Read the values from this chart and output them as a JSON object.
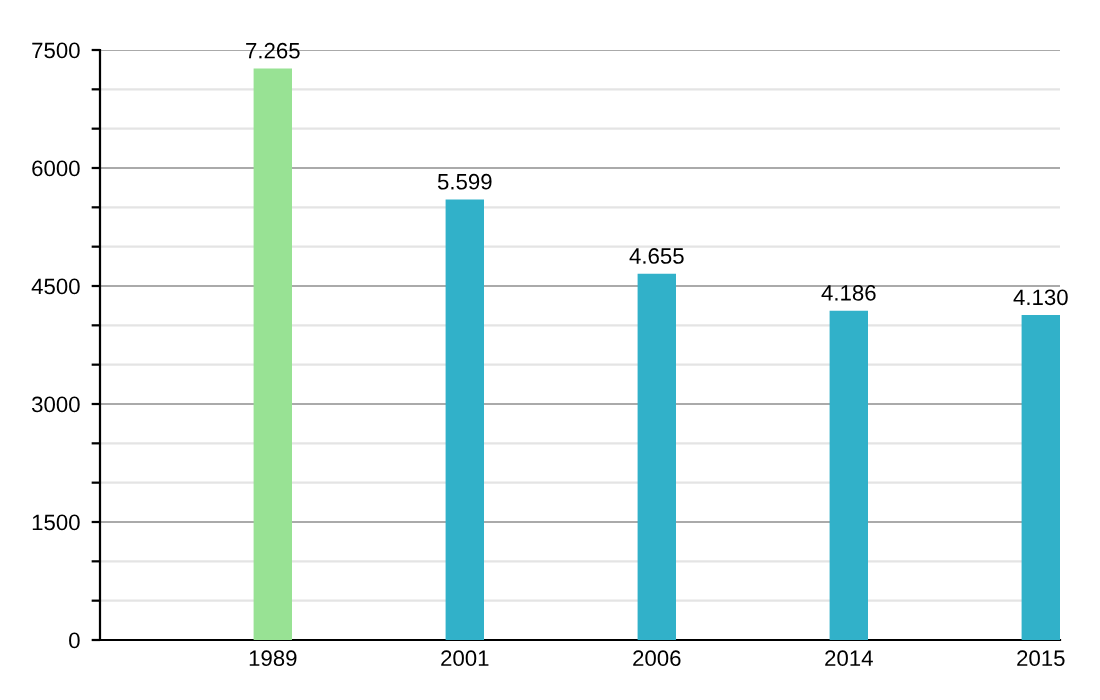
{
  "chart_data": {
    "type": "bar",
    "categories": [
      "1989",
      "2001",
      "2006",
      "2014",
      "2015"
    ],
    "values": [
      7265,
      5599,
      4655,
      4186,
      4130
    ],
    "colors": [
      "#98e294",
      "#31b1c9",
      "#31b1c9",
      "#31b1c9",
      "#31b1c9"
    ],
    "value_labels": [
      "7.265",
      "5.599",
      "4.655",
      "4.186",
      "4.130"
    ],
    "ylim": [
      0,
      7500
    ],
    "yticks": [
      0,
      {
        "value": 500,
        "label": null
      },
      {
        "value": 1000,
        "label": null
      },
      1500,
      {
        "value": 2000,
        "label": null
      },
      {
        "value": 2500,
        "label": null
      },
      3000,
      {
        "value": 3500,
        "label": null
      },
      {
        "value": 4000,
        "label": null
      },
      4500,
      {
        "value": 5000,
        "label": null
      },
      {
        "value": 5500,
        "label": null
      },
      6000,
      {
        "value": 6500,
        "label": null
      },
      {
        "value": 7000,
        "label": null
      },
      7500
    ],
    "grid": "y",
    "legend": false
  }
}
